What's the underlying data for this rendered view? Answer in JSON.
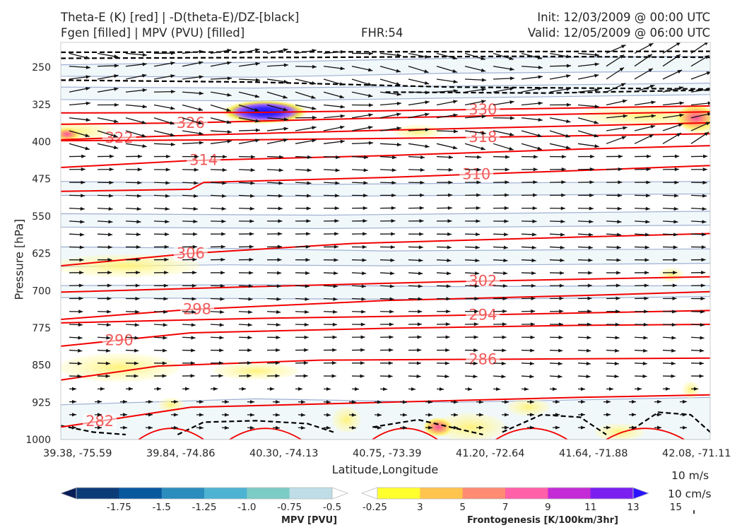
{
  "header": {
    "title_line1_left": "Theta-E (K) [red] | -D(theta-E)/DZ-[black]",
    "title_line2_left": "Fgen [filled] | MPV (PVU) [filled]",
    "title_center": "FHR:54",
    "title_line1_right": "Init: 12/03/2009 @ 00:00 UTC",
    "title_line2_right": "Valid: 12/05/2009 @ 06:00 UTC"
  },
  "chart_data": {
    "type": "contour-cross-section",
    "title": "Theta-E (K) [red] | -D(theta-E)/DZ-[black] | Fgen [filled] | MPV (PVU) [filled]",
    "xlabel": "Latitude,Longitude",
    "ylabel": "Pressure [hPa]",
    "x_ticks": [
      "39.38, -75.59",
      "39.84, -74.86",
      "40.30, -74.13",
      "40.75, -73.39",
      "41.20, -72.64",
      "41.64, -71.88",
      "42.08, -71.11"
    ],
    "y_ticks": [
      250,
      325,
      400,
      475,
      550,
      625,
      700,
      775,
      850,
      925,
      1000
    ],
    "ylim": [
      1000,
      200
    ],
    "theta_e_contours": [
      {
        "value": 330,
        "label": "330",
        "points": [
          [
            0,
            342
          ],
          [
            0.3,
            341
          ],
          [
            0.6,
            336
          ],
          [
            1,
            328
          ]
        ]
      },
      {
        "value": 326,
        "label": "326",
        "points": [
          [
            0,
            365
          ],
          [
            0.2,
            362
          ],
          [
            0.5,
            352
          ],
          [
            0.8,
            344
          ],
          [
            1,
            340
          ]
        ]
      },
      {
        "value": 322,
        "label": "322",
        "points": [
          [
            0,
            396
          ],
          [
            0.2,
            387
          ],
          [
            0.5,
            377
          ],
          [
            0.8,
            368
          ],
          [
            1,
            362
          ]
        ]
      },
      {
        "value": 318,
        "label": "318",
        "points": [
          [
            0,
            398
          ],
          [
            0.3,
            396
          ],
          [
            0.6,
            392
          ],
          [
            1,
            384
          ]
        ]
      },
      {
        "value": 314,
        "label": "314",
        "points": [
          [
            0,
            452
          ],
          [
            0.2,
            438
          ],
          [
            0.5,
            428
          ],
          [
            0.8,
            415
          ],
          [
            1,
            408
          ]
        ]
      },
      {
        "value": 310,
        "label": "310",
        "points": [
          [
            0,
            500
          ],
          [
            0.2,
            496
          ],
          [
            0.22,
            482
          ],
          [
            0.5,
            472
          ],
          [
            0.8,
            458
          ],
          [
            1,
            448
          ]
        ]
      },
      {
        "value": 306,
        "label": "306",
        "points": [
          [
            0,
            650
          ],
          [
            0.2,
            625
          ],
          [
            0.45,
            605
          ],
          [
            0.8,
            592
          ],
          [
            1,
            585
          ]
        ]
      },
      {
        "value": 302,
        "label": "302",
        "points": [
          [
            0,
            703
          ],
          [
            0.3,
            692
          ],
          [
            0.6,
            682
          ],
          [
            1,
            672
          ]
        ]
      },
      {
        "value": 298,
        "label": "298",
        "points": [
          [
            0,
            758
          ],
          [
            0.2,
            738
          ],
          [
            0.5,
            720
          ],
          [
            0.8,
            710
          ],
          [
            1,
            702
          ]
        ]
      },
      {
        "value": 294,
        "label": "294",
        "points": [
          [
            0,
            765
          ],
          [
            0.3,
            756
          ],
          [
            0.6,
            750
          ],
          [
            1,
            740
          ]
        ]
      },
      {
        "value": 290,
        "label": "290",
        "points": [
          [
            0,
            812
          ],
          [
            0.2,
            785
          ],
          [
            0.5,
            776
          ],
          [
            0.8,
            770
          ],
          [
            1,
            768
          ]
        ]
      },
      {
        "value": 286,
        "label": "286",
        "points": [
          [
            0,
            880
          ],
          [
            0.15,
            852
          ],
          [
            0.4,
            840
          ],
          [
            0.7,
            838
          ],
          [
            1,
            836
          ]
        ]
      },
      {
        "value": 282,
        "label": "282",
        "points": [
          [
            0,
            975
          ],
          [
            0.2,
            935
          ],
          [
            0.5,
            925
          ],
          [
            0.8,
            915
          ],
          [
            1,
            910
          ]
        ]
      }
    ],
    "colorbars": [
      {
        "name": "MPV [PVU]",
        "tick_labels": [
          "-1.75",
          "-1.5",
          "-1.25",
          "-1.0",
          "-0.75",
          "-0.5",
          "-0.25"
        ],
        "colors": [
          "#081d58",
          "#0c3c78",
          "#08589e",
          "#2b8cbe",
          "#4eb3d3",
          "#7bccc4",
          "#bfdde6",
          "#ffffff"
        ]
      },
      {
        "name": "Frontogenesis [K/100km/3hr]",
        "tick_labels": [
          "3",
          "5",
          "7",
          "9",
          "11",
          "13",
          "15"
        ],
        "colors": [
          "#ffffff",
          "#ffff2e",
          "#ffc44d",
          "#ff8b73",
          "#ff60a8",
          "#c42bd6",
          "#7a1ff0",
          "#2b14ff"
        ]
      }
    ],
    "wind_key": [
      "10 m/s",
      "10 cm/s"
    ]
  }
}
